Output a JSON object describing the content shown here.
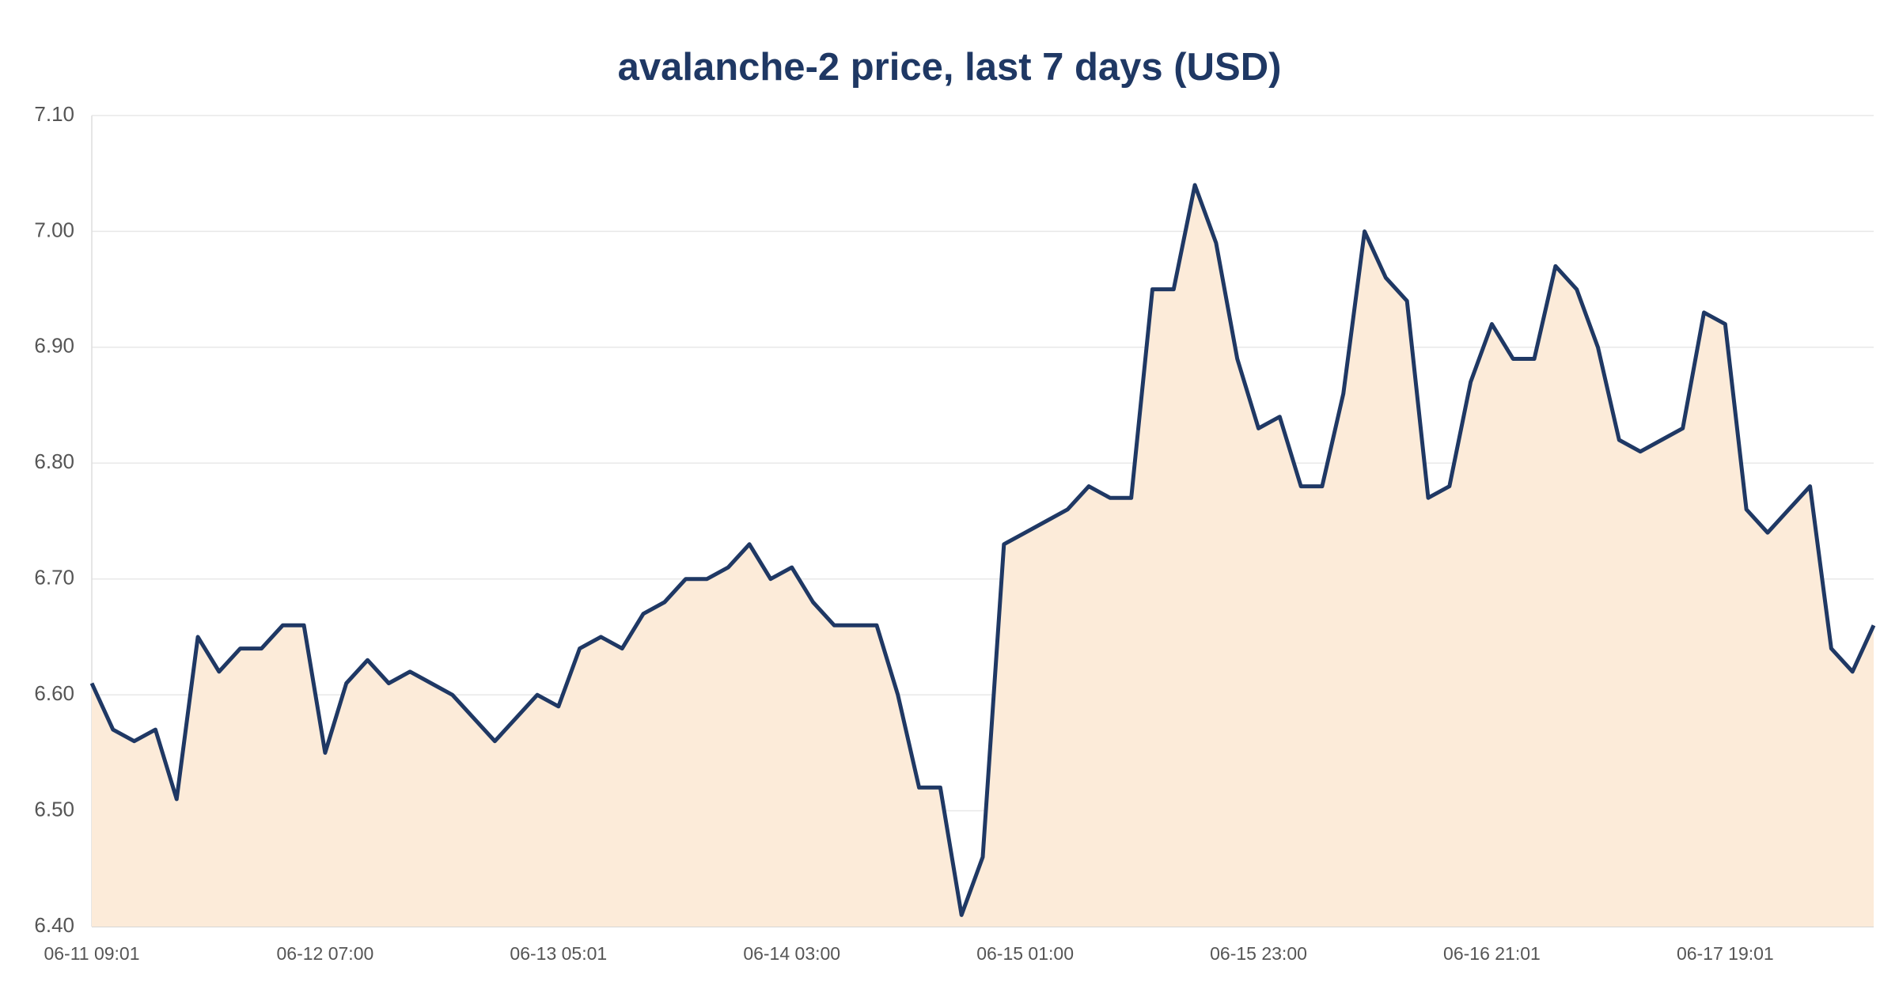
{
  "chart_data": {
    "type": "area",
    "title": "avalanche-2 price, last 7 days  (USD)",
    "categories": [
      "06-11 09:01",
      null,
      null,
      null,
      null,
      null,
      null,
      null,
      null,
      null,
      null,
      "06-12 07:00",
      null,
      null,
      null,
      null,
      null,
      null,
      null,
      null,
      null,
      null,
      "06-13 05:01",
      null,
      null,
      null,
      null,
      null,
      null,
      null,
      null,
      null,
      null,
      "06-14 03:00",
      null,
      null,
      null,
      null,
      null,
      null,
      null,
      null,
      null,
      null,
      "06-15 01:00",
      null,
      null,
      null,
      null,
      null,
      null,
      null,
      null,
      null,
      null,
      "06-15 23:00",
      null,
      null,
      null,
      null,
      null,
      null,
      null,
      null,
      null,
      null,
      "06-16 21:01",
      null,
      null,
      null,
      null,
      null,
      null,
      null,
      null,
      null,
      null,
      "06-17 19:01",
      null,
      null,
      null,
      null,
      null,
      null,
      null
    ],
    "values": [
      6.61,
      6.57,
      6.56,
      6.57,
      6.51,
      6.65,
      6.62,
      6.64,
      6.64,
      6.66,
      6.66,
      6.55,
      6.61,
      6.63,
      6.61,
      6.62,
      6.61,
      6.6,
      6.58,
      6.56,
      6.58,
      6.6,
      6.59,
      6.64,
      6.65,
      6.64,
      6.67,
      6.68,
      6.7,
      6.7,
      6.71,
      6.73,
      6.7,
      6.71,
      6.68,
      6.66,
      6.66,
      6.66,
      6.6,
      6.52,
      6.52,
      6.41,
      6.46,
      6.73,
      6.74,
      6.75,
      6.76,
      6.78,
      6.77,
      6.77,
      6.95,
      6.95,
      7.04,
      6.99,
      6.89,
      6.83,
      6.84,
      6.78,
      6.78,
      6.86,
      7.0,
      6.96,
      6.94,
      6.77,
      6.78,
      6.87,
      6.92,
      6.89,
      6.89,
      6.97,
      6.95,
      6.9,
      6.82,
      6.81,
      6.82,
      6.83,
      6.93,
      6.92,
      6.76,
      6.74,
      6.76,
      6.78,
      6.64,
      6.62,
      6.66
    ],
    "color": "#1f3864",
    "fill": "#fcebd9",
    "ylim": [
      6.4,
      7.1
    ],
    "yticks": [
      {
        "value": 6.4,
        "label": "6.40"
      },
      {
        "value": 6.5,
        "label": "6.50"
      },
      {
        "value": 6.6,
        "label": "6.60"
      },
      {
        "value": 6.7,
        "label": "6.70"
      },
      {
        "value": 6.8,
        "label": "6.80"
      },
      {
        "value": 6.9,
        "label": "6.90"
      },
      {
        "value": 7.0,
        "label": "7.00"
      },
      {
        "value": 7.1,
        "label": "7.10"
      }
    ],
    "grid": true
  }
}
